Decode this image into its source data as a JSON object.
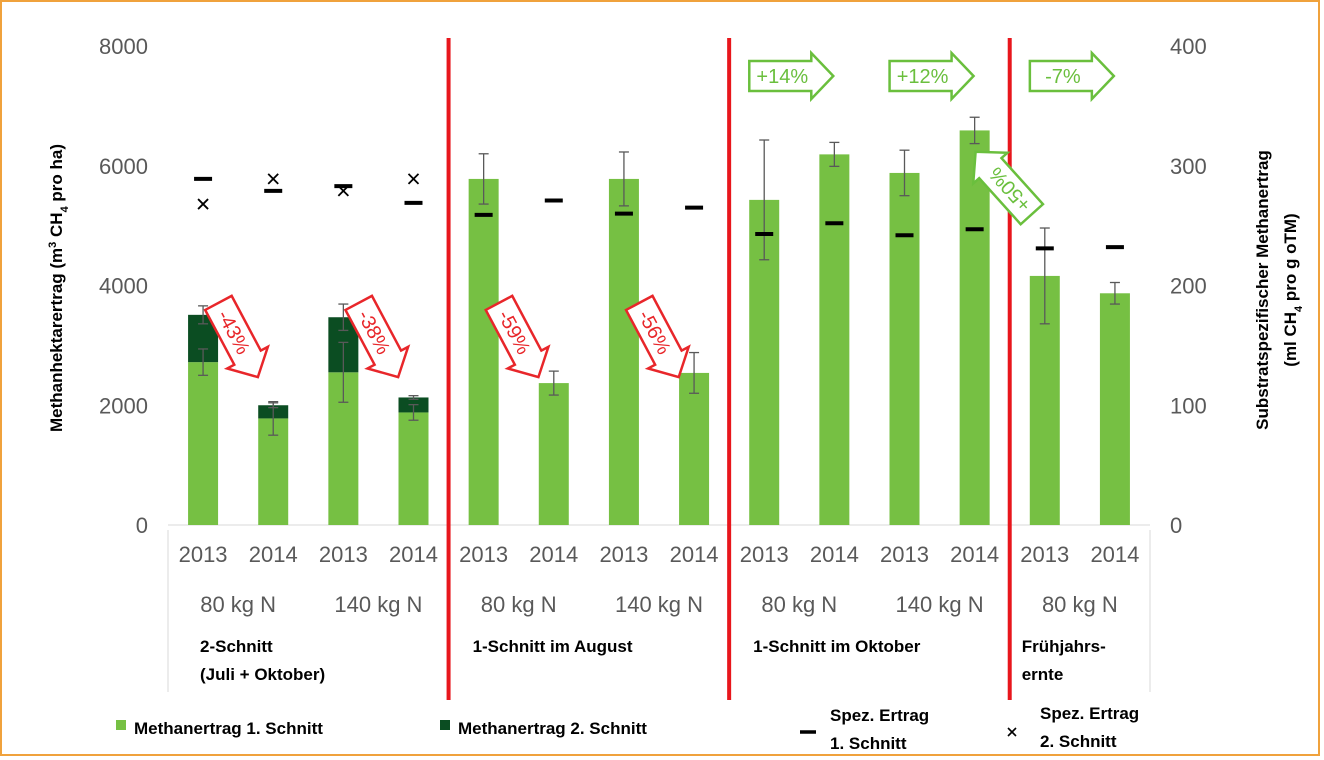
{
  "colors": {
    "bar1": "#76c043",
    "bar2": "#0b4d22",
    "divider": "#e8161c",
    "arrow_red": "#e8262a",
    "arrow_green": "#6abf3d",
    "axis_text": "#595959",
    "frame": "#f0a23c"
  },
  "chart_data": {
    "type": "bar",
    "stacked": true,
    "left_axis": {
      "label_parts": [
        "Methanhektarertrag (m",
        "3",
        " CH",
        "4",
        " pro ha)"
      ],
      "ylim": [
        0,
        8000
      ],
      "ticks": [
        "0",
        "2000",
        "4000",
        "6000",
        "8000"
      ]
    },
    "right_axis": {
      "label_line1": "Substratspezifischer Methanertrag",
      "label_line2_parts": [
        "(ml CH",
        "4",
        " pro g oTM)"
      ],
      "ylim": [
        0,
        400
      ],
      "ticks": [
        "0",
        "100",
        "200",
        "300",
        "400"
      ]
    },
    "categories": [
      "2013",
      "2014",
      "2013",
      "2014",
      "2013",
      "2014",
      "2013",
      "2014",
      "2013",
      "2014",
      "2013",
      "2014",
      "2013",
      "2014"
    ],
    "n_levels": [
      {
        "label": "80 kg N",
        "span": [
          0,
          1
        ]
      },
      {
        "label": "140 kg N",
        "span": [
          2,
          3
        ]
      },
      {
        "label": "80 kg N",
        "span": [
          4,
          5
        ]
      },
      {
        "label": "140 kg N",
        "span": [
          6,
          7
        ]
      },
      {
        "label": "80 kg N",
        "span": [
          8,
          9
        ]
      },
      {
        "label": "140 kg N",
        "span": [
          10,
          11
        ]
      },
      {
        "label": "80 kg N",
        "span": [
          12,
          13
        ]
      }
    ],
    "groups": [
      {
        "lines": [
          "2-Schnitt",
          "(Juli + Oktober)"
        ],
        "span": [
          0,
          3
        ]
      },
      {
        "lines": [
          "1-Schnitt im August"
        ],
        "span": [
          4,
          7
        ]
      },
      {
        "lines": [
          "1-Schnitt im Oktober"
        ],
        "span": [
          8,
          11
        ]
      },
      {
        "lines": [
          "Frühjahrs-",
          "ernte"
        ],
        "span": [
          12,
          13
        ]
      }
    ],
    "series": [
      {
        "name": "Methanertrag 1. Schnitt",
        "axis": "left",
        "values": [
          2720,
          1780,
          2550,
          1880,
          5780,
          2370,
          5780,
          2540,
          5430,
          6190,
          5880,
          6590,
          4160,
          3870
        ],
        "error": [
          220,
          280,
          500,
          130,
          420,
          200,
          450,
          340,
          1000,
          200,
          380,
          220,
          800,
          180
        ]
      },
      {
        "name": "Methanertrag 2. Schnitt",
        "axis": "left",
        "values": [
          790,
          220,
          920,
          250,
          0,
          0,
          0,
          0,
          0,
          0,
          0,
          0,
          0,
          0
        ],
        "error": [
          150,
          40,
          220,
          30,
          null,
          null,
          null,
          null,
          null,
          null,
          null,
          null,
          null,
          null
        ]
      },
      {
        "name": "Spez. Ertrag 1. Schnitt",
        "axis": "right",
        "marker": "dash",
        "values": [
          289,
          279,
          283,
          269,
          259,
          271,
          260,
          265,
          243,
          252,
          242,
          247,
          231,
          232
        ]
      },
      {
        "name": "Spez. Ertrag 2. Schnitt",
        "axis": "right",
        "marker": "x",
        "values": [
          268,
          289,
          279,
          289,
          null,
          null,
          null,
          null,
          null,
          null,
          null,
          null,
          null,
          null
        ]
      }
    ],
    "annotations": [
      {
        "text": "-43%",
        "color": "red",
        "direction": "down",
        "between": [
          0,
          1
        ]
      },
      {
        "text": "-38%",
        "color": "red",
        "direction": "down",
        "between": [
          2,
          3
        ]
      },
      {
        "text": "-59%",
        "color": "red",
        "direction": "down",
        "between": [
          4,
          5
        ]
      },
      {
        "text": "-56%",
        "color": "red",
        "direction": "down",
        "between": [
          6,
          7
        ]
      },
      {
        "text": "+14%",
        "color": "green",
        "direction": "right",
        "between": [
          8,
          9
        ]
      },
      {
        "text": "+12%",
        "color": "green",
        "direction": "right",
        "between": [
          10,
          11
        ]
      },
      {
        "text": "+50%",
        "color": "green",
        "direction": "up-left",
        "between": [
          11,
          12
        ]
      },
      {
        "text": "-7%",
        "color": "green",
        "direction": "right",
        "between": [
          12,
          13
        ]
      }
    ],
    "dividers_after_group": [
      0,
      1,
      2
    ],
    "legend": [
      {
        "marker": "bar1",
        "lines": [
          "Methanertrag 1. Schnitt"
        ]
      },
      {
        "marker": "bar2",
        "lines": [
          "Methanertrag 2. Schnitt"
        ]
      },
      {
        "marker": "dash",
        "lines": [
          "Spez. Ertrag",
          "1. Schnitt"
        ]
      },
      {
        "marker": "x",
        "lines": [
          "Spez. Ertrag",
          "2. Schnitt"
        ]
      }
    ],
    "legend_position": "bottom",
    "grid": false
  }
}
